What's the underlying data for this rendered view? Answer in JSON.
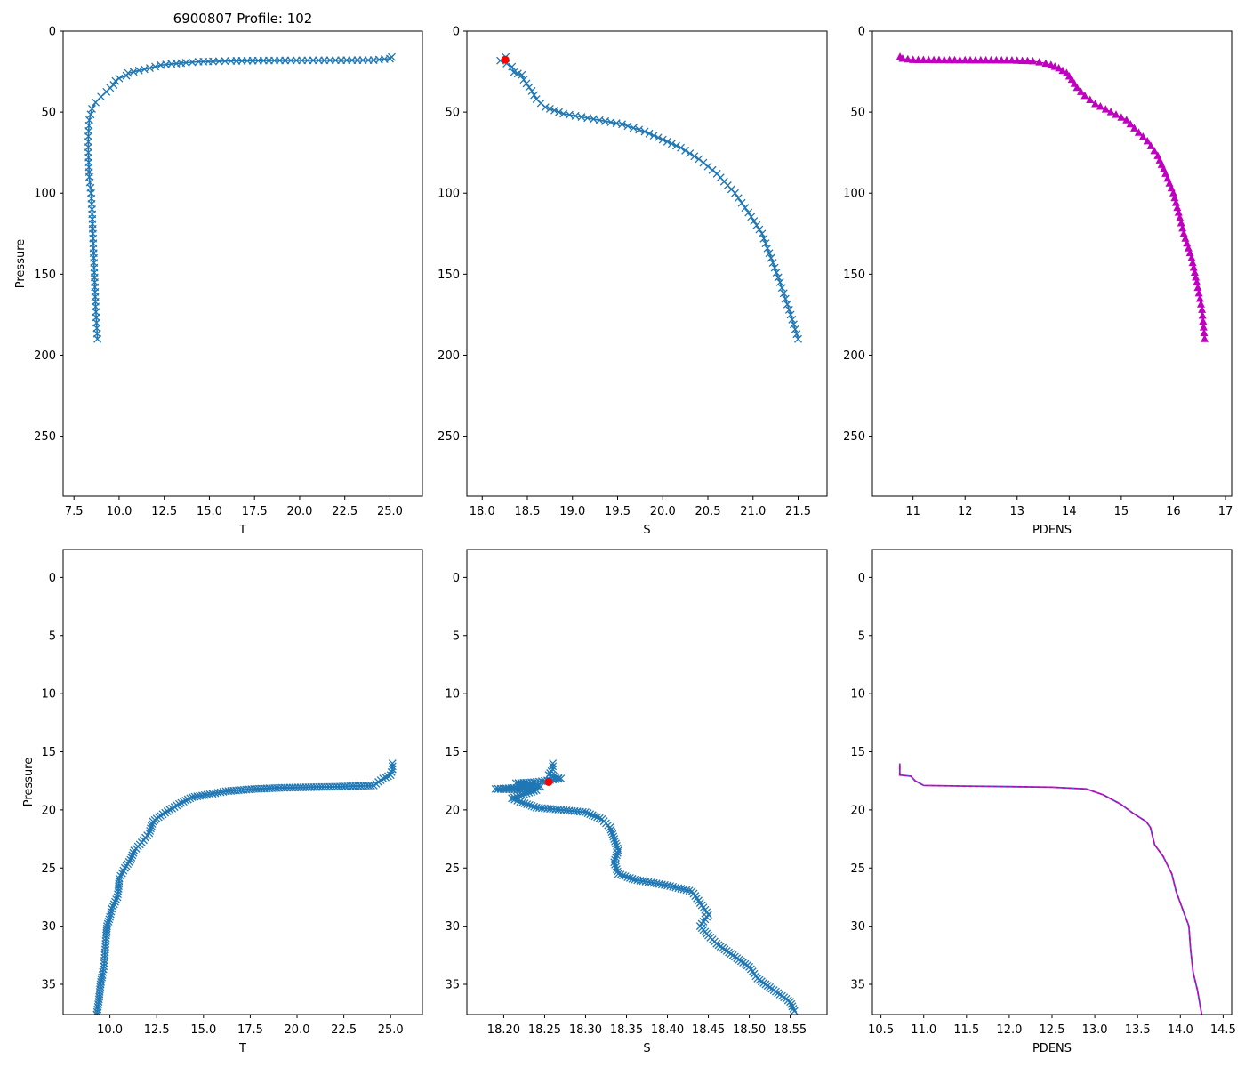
{
  "figure": {
    "title": "6900807 Profile: 102"
  },
  "colors": {
    "primary": "#1f77b4",
    "density": "#bf00bf",
    "highlight": "#ff0000",
    "density_dash": "#1f77b4"
  },
  "chart_data": [
    {
      "id": "p1",
      "type": "line",
      "marker": "x",
      "color": "primary",
      "xlabel": "T",
      "ylabel": "Pressure",
      "title": "6900807 Profile: 102",
      "xlim": [
        6.9,
        26.8
      ],
      "ylim": [
        287,
        0
      ],
      "y_inverted": true,
      "xticks": [
        7.5,
        10.0,
        12.5,
        15.0,
        17.5,
        20.0,
        22.5,
        25.0
      ],
      "xtick_labels": [
        "7.5",
        "10.0",
        "12.5",
        "15.0",
        "17.5",
        "20.0",
        "22.5",
        "25.0"
      ],
      "yticks": [
        0,
        50,
        100,
        150,
        200,
        250
      ],
      "ytick_labels": [
        "0",
        "50",
        "100",
        "150",
        "200",
        "250"
      ],
      "profile": [
        [
          25.1,
          16.0
        ],
        [
          25.0,
          17.0
        ],
        [
          24.1,
          17.9
        ],
        [
          22.3,
          18.0
        ],
        [
          19.2,
          18.1
        ],
        [
          17.7,
          18.2
        ],
        [
          16.2,
          18.4
        ],
        [
          15.2,
          18.7
        ],
        [
          14.4,
          18.9
        ],
        [
          13.7,
          19.5
        ],
        [
          12.9,
          20.3
        ],
        [
          12.3,
          21.0
        ],
        [
          11.7,
          22.8
        ],
        [
          11.1,
          24.3
        ],
        [
          10.5,
          25.9
        ],
        [
          10.4,
          27.5
        ],
        [
          10.0,
          29.2
        ],
        [
          9.8,
          30.8
        ],
        [
          9.7,
          33.2
        ],
        [
          9.5,
          35.0
        ],
        [
          9.3,
          37.5
        ],
        [
          9.0,
          40.5
        ],
        [
          8.7,
          44.0
        ],
        [
          8.5,
          48.0
        ],
        [
          8.35,
          55.0
        ],
        [
          8.3,
          65.0
        ],
        [
          8.3,
          75.0
        ],
        [
          8.35,
          90.0
        ],
        [
          8.45,
          100.0
        ],
        [
          8.5,
          110.0
        ],
        [
          8.55,
          125.0
        ],
        [
          8.6,
          140.0
        ],
        [
          8.65,
          155.0
        ],
        [
          8.7,
          170.0
        ],
        [
          8.75,
          180.0
        ],
        [
          8.8,
          190.0
        ]
      ]
    },
    {
      "id": "p2",
      "type": "line",
      "marker": "x",
      "color": "primary",
      "xlabel": "S",
      "xlim": [
        17.83,
        21.82
      ],
      "ylim": [
        287,
        0
      ],
      "y_inverted": true,
      "xticks": [
        18.0,
        18.5,
        19.0,
        19.5,
        20.0,
        20.5,
        21.0,
        21.5
      ],
      "xtick_labels": [
        "18.0",
        "18.5",
        "19.0",
        "19.5",
        "20.0",
        "20.5",
        "21.0",
        "21.5"
      ],
      "yticks": [
        0,
        50,
        100,
        150,
        200,
        250
      ],
      "ytick_labels": [
        "0",
        "50",
        "100",
        "150",
        "200",
        "250"
      ],
      "highlight_point": [
        18.255,
        17.6
      ],
      "profile": [
        [
          18.26,
          16.0
        ],
        [
          18.2,
          18.2
        ],
        [
          18.27,
          20.0
        ],
        [
          18.33,
          22.0
        ],
        [
          18.35,
          25.5
        ],
        [
          18.44,
          27.0
        ],
        [
          18.46,
          30.0
        ],
        [
          18.55,
          37.0
        ],
        [
          18.6,
          42.0
        ],
        [
          18.7,
          47.0
        ],
        [
          18.9,
          51.0
        ],
        [
          19.1,
          53.0
        ],
        [
          19.3,
          55.0
        ],
        [
          19.55,
          57.5
        ],
        [
          19.8,
          62.0
        ],
        [
          20.0,
          67.0
        ],
        [
          20.2,
          72.0
        ],
        [
          20.4,
          79.0
        ],
        [
          20.6,
          88.0
        ],
        [
          20.8,
          100.0
        ],
        [
          20.95,
          112.0
        ],
        [
          21.1,
          125.0
        ],
        [
          21.2,
          140.0
        ],
        [
          21.3,
          155.0
        ],
        [
          21.4,
          172.0
        ],
        [
          21.5,
          190.0
        ]
      ]
    },
    {
      "id": "p3",
      "type": "line",
      "marker": "^",
      "color": "density",
      "xlabel": "PDENS",
      "xlim": [
        10.22,
        17.12
      ],
      "ylim": [
        287,
        0
      ],
      "y_inverted": true,
      "xticks": [
        11,
        12,
        13,
        14,
        15,
        16,
        17
      ],
      "xtick_labels": [
        "11",
        "12",
        "13",
        "14",
        "15",
        "16",
        "17"
      ],
      "yticks": [
        0,
        50,
        100,
        150,
        200,
        250
      ],
      "ytick_labels": [
        "0",
        "50",
        "100",
        "150",
        "200",
        "250"
      ],
      "profile": [
        [
          10.75,
          16.0
        ],
        [
          10.8,
          17.0
        ],
        [
          11.0,
          17.8
        ],
        [
          12.0,
          18.0
        ],
        [
          12.9,
          18.1
        ],
        [
          13.3,
          18.6
        ],
        [
          13.55,
          20.0
        ],
        [
          13.65,
          21.0
        ],
        [
          13.8,
          23.0
        ],
        [
          13.95,
          26.0
        ],
        [
          14.05,
          30.0
        ],
        [
          14.15,
          35.0
        ],
        [
          14.3,
          40.0
        ],
        [
          14.5,
          45.0
        ],
        [
          14.8,
          50.0
        ],
        [
          15.1,
          55.0
        ],
        [
          15.25,
          60.0
        ],
        [
          15.5,
          68.0
        ],
        [
          15.7,
          77.0
        ],
        [
          15.85,
          88.0
        ],
        [
          16.0,
          100.0
        ],
        [
          16.1,
          112.0
        ],
        [
          16.2,
          125.0
        ],
        [
          16.35,
          140.0
        ],
        [
          16.45,
          155.0
        ],
        [
          16.55,
          172.0
        ],
        [
          16.6,
          190.0
        ]
      ]
    },
    {
      "id": "p4",
      "type": "line",
      "marker": "x",
      "color": "primary",
      "xlabel": "T",
      "ylabel": "Pressure",
      "xlim": [
        7.5,
        26.7
      ],
      "ylim": [
        37.6,
        -2.4
      ],
      "y_inverted": true,
      "xticks": [
        10.0,
        12.5,
        15.0,
        17.5,
        20.0,
        22.5,
        25.0
      ],
      "xtick_labels": [
        "10.0",
        "12.5",
        "15.0",
        "17.5",
        "20.0",
        "22.5",
        "25.0"
      ],
      "yticks": [
        0,
        5,
        10,
        15,
        20,
        25,
        30,
        35
      ],
      "ytick_labels": [
        "0",
        "5",
        "10",
        "15",
        "20",
        "25",
        "30",
        "35"
      ],
      "profile": [
        [
          25.1,
          16.0
        ],
        [
          25.1,
          16.5
        ],
        [
          25.0,
          17.0
        ],
        [
          24.6,
          17.3
        ],
        [
          24.1,
          17.9
        ],
        [
          22.3,
          18.0
        ],
        [
          19.2,
          18.1
        ],
        [
          17.7,
          18.2
        ],
        [
          16.2,
          18.4
        ],
        [
          15.2,
          18.7
        ],
        [
          14.4,
          18.9
        ],
        [
          13.7,
          19.5
        ],
        [
          13.2,
          20.0
        ],
        [
          12.7,
          20.5
        ],
        [
          12.3,
          21.0
        ],
        [
          12.1,
          22.0
        ],
        [
          11.7,
          22.8
        ],
        [
          11.3,
          23.5
        ],
        [
          11.1,
          24.3
        ],
        [
          10.8,
          25.0
        ],
        [
          10.5,
          25.9
        ],
        [
          10.45,
          27.0
        ],
        [
          10.4,
          27.5
        ],
        [
          10.1,
          28.5
        ],
        [
          10.0,
          29.2
        ],
        [
          9.85,
          30.0
        ],
        [
          9.8,
          30.8
        ],
        [
          9.75,
          32.0
        ],
        [
          9.7,
          33.2
        ],
        [
          9.6,
          34.2
        ],
        [
          9.5,
          35.0
        ],
        [
          9.4,
          36.5
        ],
        [
          9.3,
          37.6
        ]
      ]
    },
    {
      "id": "p5",
      "type": "line",
      "marker": "x",
      "color": "primary",
      "xlabel": "S",
      "xlim": [
        18.155,
        18.595
      ],
      "ylim": [
        37.6,
        -2.4
      ],
      "y_inverted": true,
      "xticks": [
        18.2,
        18.25,
        18.3,
        18.35,
        18.4,
        18.45,
        18.5,
        18.55
      ],
      "xtick_labels": [
        "18.20",
        "18.25",
        "18.30",
        "18.35",
        "18.40",
        "18.45",
        "18.50",
        "18.55"
      ],
      "yticks": [
        0,
        5,
        10,
        15,
        20,
        25,
        30,
        35
      ],
      "ytick_labels": [
        "0",
        "5",
        "10",
        "15",
        "20",
        "25",
        "30",
        "35"
      ],
      "highlight_point": [
        18.255,
        17.6
      ],
      "profile": [
        [
          18.26,
          16.0
        ],
        [
          18.26,
          16.5
        ],
        [
          18.255,
          17.0
        ],
        [
          18.27,
          17.3
        ],
        [
          18.24,
          17.6
        ],
        [
          18.215,
          17.7
        ],
        [
          18.245,
          18.0
        ],
        [
          18.19,
          18.2
        ],
        [
          18.24,
          18.3
        ],
        [
          18.21,
          19.0
        ],
        [
          18.22,
          19.3
        ],
        [
          18.24,
          19.8
        ],
        [
          18.27,
          20.0
        ],
        [
          18.3,
          20.2
        ],
        [
          18.32,
          20.8
        ],
        [
          18.33,
          21.5
        ],
        [
          18.335,
          22.5
        ],
        [
          18.34,
          23.5
        ],
        [
          18.335,
          24.5
        ],
        [
          18.34,
          25.5
        ],
        [
          18.36,
          26.0
        ],
        [
          18.4,
          26.5
        ],
        [
          18.43,
          27.0
        ],
        [
          18.44,
          28.0
        ],
        [
          18.45,
          29.0
        ],
        [
          18.44,
          30.0
        ],
        [
          18.45,
          30.8
        ],
        [
          18.46,
          31.5
        ],
        [
          18.48,
          32.5
        ],
        [
          18.5,
          33.5
        ],
        [
          18.51,
          34.5
        ],
        [
          18.53,
          35.5
        ],
        [
          18.55,
          36.5
        ],
        [
          18.555,
          37.3
        ]
      ]
    },
    {
      "id": "p6",
      "type": "line",
      "marker": "none",
      "color": "density",
      "xlabel": "PDENS",
      "xlim": [
        10.4,
        14.6
      ],
      "ylim": [
        37.6,
        -2.4
      ],
      "y_inverted": true,
      "xticks": [
        10.5,
        11.0,
        11.5,
        12.0,
        12.5,
        13.0,
        13.5,
        14.0,
        14.5
      ],
      "xtick_labels": [
        "10.5",
        "11.0",
        "11.5",
        "12.0",
        "12.5",
        "13.0",
        "13.5",
        "14.0",
        "14.5"
      ],
      "yticks": [
        0,
        5,
        10,
        15,
        20,
        25,
        30,
        35
      ],
      "ytick_labels": [
        "0",
        "5",
        "10",
        "15",
        "20",
        "25",
        "30",
        "35"
      ],
      "profile": [
        [
          10.72,
          16.0
        ],
        [
          10.72,
          17.0
        ],
        [
          10.85,
          17.1
        ],
        [
          10.9,
          17.5
        ],
        [
          11.0,
          17.9
        ],
        [
          11.5,
          17.95
        ],
        [
          12.0,
          18.0
        ],
        [
          12.5,
          18.05
        ],
        [
          12.9,
          18.2
        ],
        [
          13.1,
          18.7
        ],
        [
          13.3,
          19.5
        ],
        [
          13.45,
          20.3
        ],
        [
          13.6,
          21.0
        ],
        [
          13.65,
          21.5
        ],
        [
          13.7,
          23.0
        ],
        [
          13.8,
          24.0
        ],
        [
          13.9,
          25.5
        ],
        [
          13.95,
          27.0
        ],
        [
          14.05,
          29.0
        ],
        [
          14.1,
          30.0
        ],
        [
          14.12,
          32.0
        ],
        [
          14.15,
          34.0
        ],
        [
          14.2,
          35.5
        ],
        [
          14.25,
          37.6
        ]
      ]
    }
  ]
}
